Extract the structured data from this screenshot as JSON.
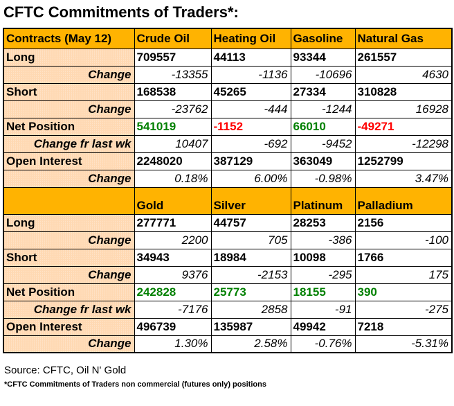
{
  "chart_data": {
    "type": "table",
    "title": "CFTC Commitments of Traders*:",
    "sections": [
      {
        "headers": [
          "Contracts (May 12)",
          "Crude Oil",
          "Heating Oil",
          "Gasoline",
          "Natural Gas"
        ],
        "rows": [
          {
            "label": "Long",
            "type": "main",
            "values": [
              "709557",
              "44113",
              "93344",
              "261557"
            ]
          },
          {
            "label": "Change",
            "type": "change",
            "values": [
              "-13355",
              "-1136",
              "-10696",
              "4630"
            ]
          },
          {
            "label": "Short",
            "type": "main",
            "values": [
              "168538",
              "45265",
              "27334",
              "310828"
            ]
          },
          {
            "label": "Change",
            "type": "change",
            "values": [
              "-23762",
              "-444",
              "-1244",
              "16928"
            ]
          },
          {
            "label": "Net Position",
            "type": "net",
            "values": [
              "541019",
              "-1152",
              "66010",
              "-49271"
            ],
            "value_colors": [
              "positive",
              "negative",
              "positive",
              "negative"
            ]
          },
          {
            "label": "Change fr last wk",
            "type": "change",
            "values": [
              "10407",
              "-692",
              "-9452",
              "-12298"
            ]
          },
          {
            "label": "Open Interest",
            "type": "main",
            "values": [
              "2248020",
              "387129",
              "363049",
              "1252799"
            ]
          },
          {
            "label": "Change",
            "type": "change",
            "values": [
              "0.18%",
              "6.00%",
              "-0.98%",
              "3.47%"
            ]
          }
        ]
      },
      {
        "headers": [
          "",
          "Gold",
          "Silver",
          "Platinum",
          "Palladium"
        ],
        "rows": [
          {
            "label": "Long",
            "type": "main",
            "values": [
              "277771",
              "44757",
              "28253",
              "2156"
            ]
          },
          {
            "label": "Change",
            "type": "change",
            "values": [
              "2200",
              "705",
              "-386",
              "-100"
            ]
          },
          {
            "label": "Short",
            "type": "main",
            "values": [
              "34943",
              "18984",
              "10098",
              "1766"
            ]
          },
          {
            "label": "Change",
            "type": "change",
            "values": [
              "9376",
              "-2153",
              "-295",
              "175"
            ]
          },
          {
            "label": "Net Position",
            "type": "net",
            "values": [
              "242828",
              "25773",
              "18155",
              "390"
            ],
            "value_colors": [
              "positive",
              "positive",
              "positive",
              "positive"
            ]
          },
          {
            "label": "Change fr last wk",
            "type": "change",
            "values": [
              "-7176",
              "2858",
              "-91",
              "-275"
            ]
          },
          {
            "label": "Open Interest",
            "type": "main",
            "values": [
              "496739",
              "135987",
              "49942",
              "7218"
            ]
          },
          {
            "label": "Change",
            "type": "change",
            "values": [
              "1.30%",
              "2.58%",
              "-0.76%",
              "-5.31%"
            ]
          }
        ]
      }
    ]
  },
  "footer": {
    "source": "Source: CFTC, Oil N' Gold",
    "footnote": "*CFTC Commitments of Traders non commercial (futures only) positions"
  },
  "colors": {
    "header_bg": "#FFB301",
    "label_bg": "#FFD9B3",
    "label_dot": "#FFEBD9",
    "positive": "#008000",
    "negative": "#FF0000",
    "border": "#000000"
  }
}
